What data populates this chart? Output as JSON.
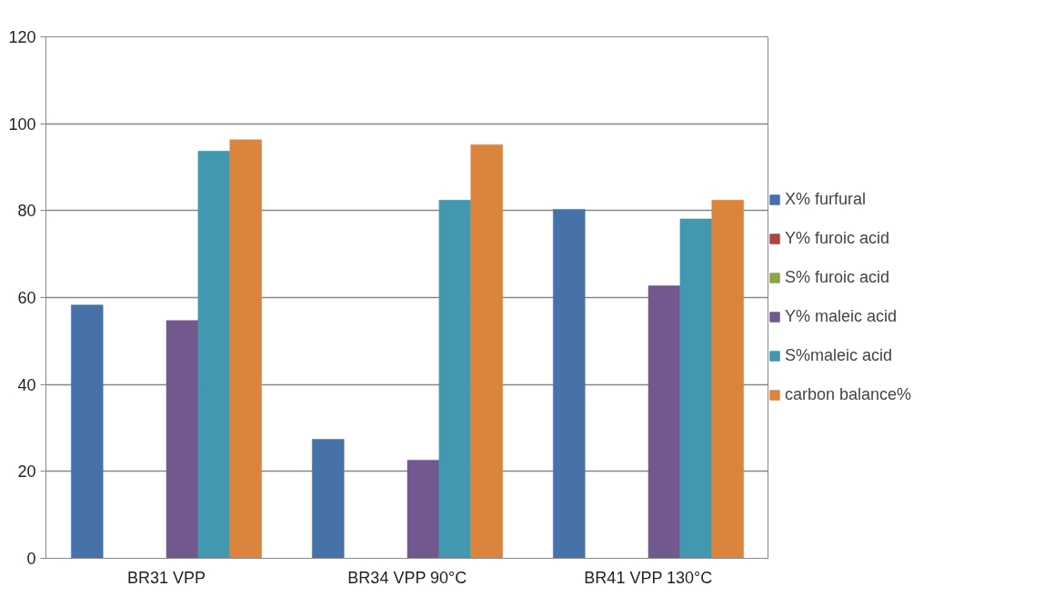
{
  "chart_data": {
    "type": "bar",
    "categories": [
      "BR31 VPP",
      "BR34 VPP 90°C",
      "BR41 VPP 130°C"
    ],
    "series": [
      {
        "name": "X% furfural",
        "color": "#4672a8",
        "values": [
          58.3,
          27.4,
          80.3
        ]
      },
      {
        "name": "Y% furoic acid",
        "color": "#aa4643",
        "values": [
          0,
          0,
          0
        ]
      },
      {
        "name": "S% furoic acid",
        "color": "#89a54e",
        "values": [
          0,
          0,
          0
        ]
      },
      {
        "name": "Y% maleic acid",
        "color": "#71588f",
        "values": [
          54.7,
          22.6,
          62.7
        ]
      },
      {
        "name": "S%maleic acid",
        "color": "#4198af",
        "values": [
          93.7,
          82.4,
          78.1
        ]
      },
      {
        "name": "carbon balance%",
        "color": "#db843d",
        "values": [
          96.3,
          95.2,
          82.4
        ]
      }
    ],
    "ylim": [
      0,
      120
    ],
    "yticks": [
      0,
      20,
      40,
      60,
      80,
      100,
      120
    ],
    "grid": "y",
    "legend": "right"
  }
}
